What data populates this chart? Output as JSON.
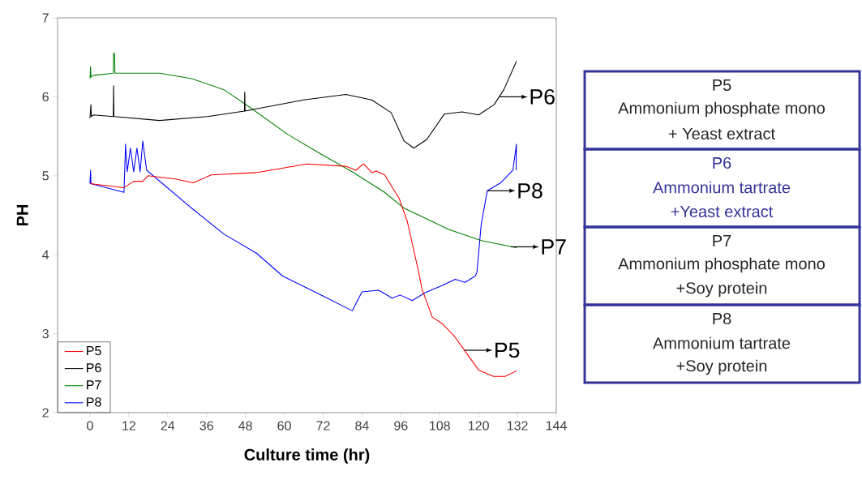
{
  "chart_data": {
    "type": "line",
    "xlabel": "Culture time (hr)",
    "ylabel": "PH",
    "xlim": [
      -10,
      144
    ],
    "ylim": [
      2,
      7
    ],
    "xticks": [
      0,
      12,
      24,
      36,
      48,
      60,
      72,
      84,
      96,
      108,
      120,
      132,
      144
    ],
    "yticks": [
      2,
      3,
      4,
      5,
      6,
      7
    ],
    "legend": "bottom left",
    "marker": "none",
    "grid": false,
    "series": [
      {
        "name": "P5",
        "color": "#ff0000",
        "x": [
          0,
          10.5,
          13.5,
          16.3,
          17.9,
          26.4,
          31.9,
          37.4,
          51.3,
          67,
          79,
          82.1,
          84.5,
          87,
          88.4,
          91,
          95.5,
          98,
          101.5,
          102.5,
          105.7,
          108.7,
          112.3,
          115.3,
          120,
          124.6,
          128.2,
          131.8
        ],
        "values": [
          4.9,
          4.85,
          4.93,
          4.93,
          5.0,
          4.96,
          4.91,
          5.01,
          5.04,
          5.15,
          5.12,
          5.07,
          5.15,
          5.04,
          5.06,
          5.01,
          4.71,
          4.42,
          3.78,
          3.57,
          3.21,
          3.13,
          2.98,
          2.81,
          2.54,
          2.46,
          2.46,
          2.53
        ]
      },
      {
        "name": "P6",
        "color": "#000000",
        "x": [
          0,
          0.3,
          0.4,
          1,
          7.2,
          7.3,
          7.4,
          21.5,
          36.4,
          47.7,
          47.8,
          47.9,
          50.4,
          66,
          79,
          87,
          93,
          97,
          100,
          104,
          109.4,
          114.9,
          120,
          124.8,
          127.8,
          131.7
        ],
        "values": [
          5.73,
          5.9,
          5.75,
          5.77,
          5.75,
          6.14,
          5.75,
          5.7,
          5.75,
          5.82,
          6.06,
          5.82,
          5.84,
          5.96,
          6.03,
          5.96,
          5.8,
          5.44,
          5.35,
          5.46,
          5.78,
          5.81,
          5.77,
          5.9,
          6.09,
          6.45
        ]
      },
      {
        "name": "P7",
        "color": "#008000",
        "x": [
          0,
          0.2,
          0.3,
          1,
          7.2,
          7.3,
          7.6,
          7.7,
          21.5,
          31.4,
          41.4,
          50.3,
          61.2,
          71.1,
          81,
          91,
          97,
          110.8,
          120.8,
          131.7
        ],
        "values": [
          6.23,
          6.38,
          6.25,
          6.27,
          6.3,
          6.55,
          6.55,
          6.3,
          6.3,
          6.23,
          6.09,
          5.84,
          5.52,
          5.28,
          5.05,
          4.79,
          4.59,
          4.32,
          4.18,
          4.09
        ]
      },
      {
        "name": "P8",
        "color": "#0000ff",
        "x": [
          0,
          0.2,
          0.3,
          10.5,
          11,
          11.5,
          12.5,
          13.5,
          14.5,
          15.5,
          16.3,
          17.5,
          31.4,
          41.4,
          51.4,
          59.5,
          71.8,
          81,
          84,
          89.2,
          93.3,
          95.8,
          99.5,
          103.5,
          108.7,
          112.8,
          115.8,
          119,
          119.5,
          120.8,
          122.7,
          126.8,
          130.6,
          131.7,
          131.6
        ],
        "values": [
          4.9,
          5.07,
          4.9,
          4.79,
          5.4,
          5.05,
          5.35,
          5.05,
          5.35,
          5.05,
          5.44,
          5.07,
          4.59,
          4.26,
          4.02,
          3.73,
          3.48,
          3.29,
          3.53,
          3.55,
          3.45,
          3.49,
          3.42,
          3.52,
          3.61,
          3.69,
          3.65,
          3.73,
          3.78,
          4.38,
          4.81,
          4.91,
          5.07,
          5.4,
          5.07
        ]
      }
    ],
    "annotations": [
      {
        "text": "P6",
        "x": 126.5,
        "y": 6.0
      },
      {
        "text": "P8",
        "x": 122.7,
        "y": 4.81
      },
      {
        "text": "P7",
        "x": 130,
        "y": 4.1
      },
      {
        "text": "P5",
        "x": 115.6,
        "y": 2.79
      },
      "P5",
      "Ammonium phosphate mono",
      "+ Yeast extract",
      "P6",
      "Ammonium tartrate",
      "+Yeast extract",
      "P7",
      "Ammonium phosphate mono",
      "+Soy protein",
      "P8",
      "Ammonium tartrate",
      "+Soy protein"
    ]
  }
}
